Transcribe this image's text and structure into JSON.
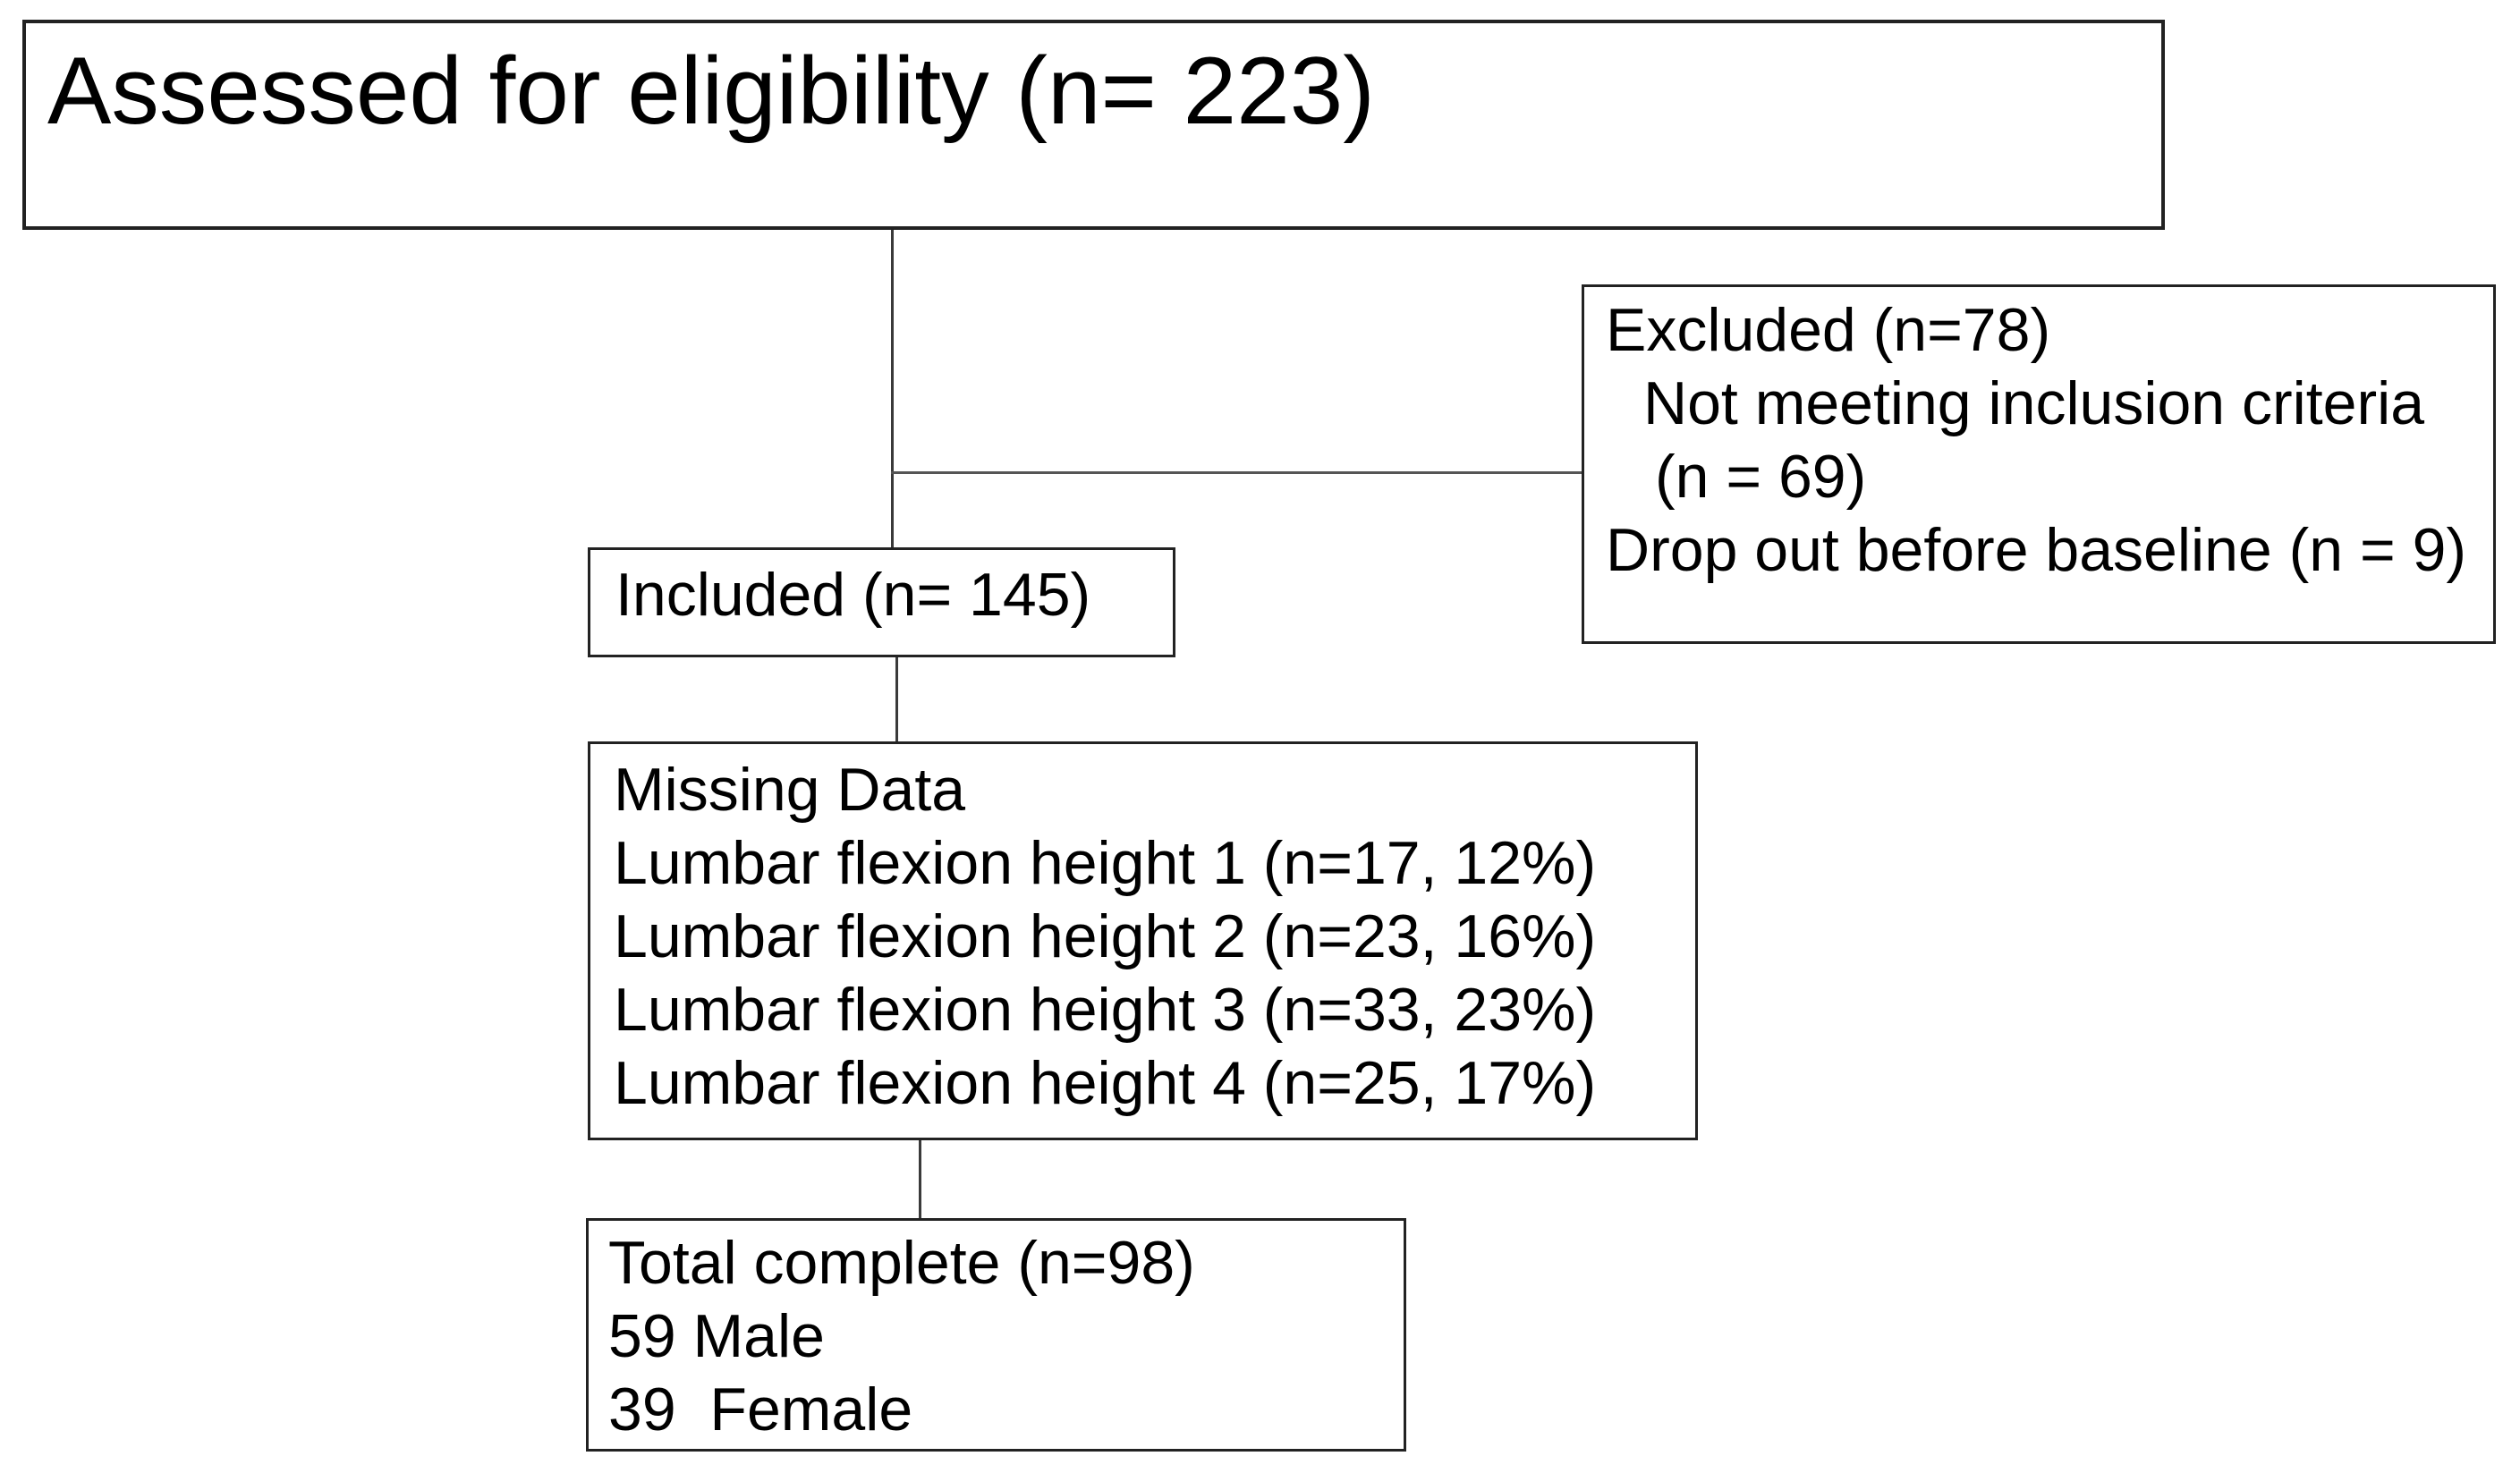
{
  "flowchart": {
    "assessed_box": {
      "label": "Assessed for eligibility (n= 223)"
    },
    "excluded_box": {
      "lines": [
        {
          "text": "Excluded (n=78)",
          "indent": 0
        },
        {
          "text": "Not meeting inclusion criteria",
          "indent": 1
        },
        {
          "text": "(n = 69)",
          "indent": 2
        },
        {
          "text": "Drop out before baseline (n = 9)",
          "indent": 0
        }
      ]
    },
    "included_box": {
      "label": "Included (n= 145)"
    },
    "missing_box": {
      "lines": [
        "Missing Data",
        "Lumbar flexion height 1 (n=17, 12%)",
        "Lumbar flexion height 2 (n=23, 16%)",
        "Lumbar flexion height 3 (n=33, 23%)",
        "Lumbar flexion height 4 (n=25, 17%)"
      ]
    },
    "total_box": {
      "lines": [
        "Total complete (n=98)",
        "59 Male",
        "39  Female"
      ]
    },
    "colors": {
      "background": "#ffffff",
      "box_border": "#222222",
      "text": "#000000",
      "connector": "#3a3a3a"
    }
  }
}
